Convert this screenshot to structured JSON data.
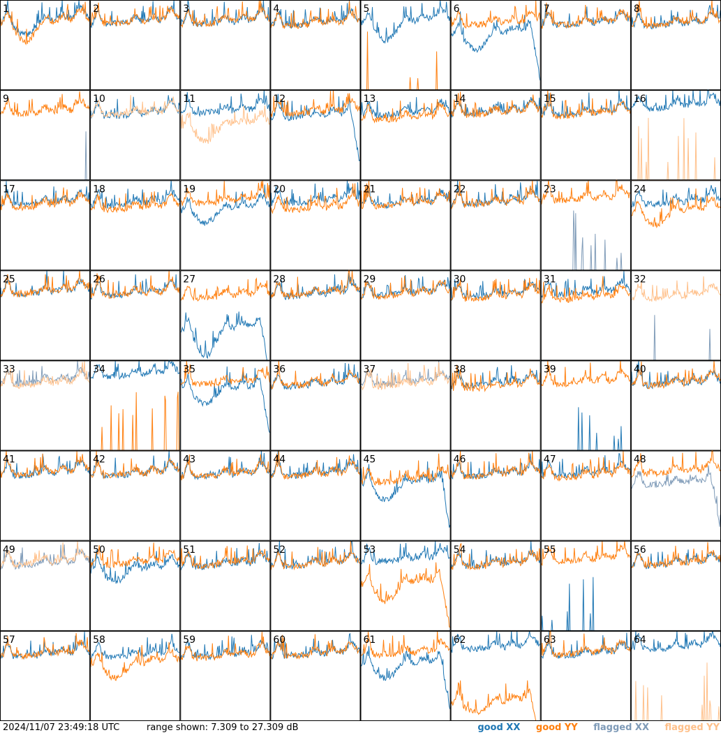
{
  "footer": {
    "timestamp": "2024/11/07 23:49:18 UTC",
    "range_text": "range shown: 7.309 to 27.309 dB"
  },
  "legend": [
    {
      "label": "good XX",
      "color": "#1f77b4"
    },
    {
      "label": "good YY",
      "color": "#ff7f0e"
    },
    {
      "label": "flagged XX",
      "color": "#7f9bb8"
    },
    {
      "label": "flagged YY",
      "color": "#ffc08a"
    }
  ],
  "chart_data": {
    "type": "line",
    "grid": {
      "rows": 8,
      "cols": 8
    },
    "title": "",
    "xlabel": "",
    "ylabel": "",
    "ylim": [
      7.309,
      27.309
    ],
    "y_unit": "dB",
    "series_types": [
      "good XX",
      "good YY",
      "flagged XX",
      "flagged YY"
    ],
    "colors": {
      "good_xx": "#1f77b4",
      "good_yy": "#ff7f0e",
      "flagged_xx": "#7f9bb8",
      "flagged_yy": "#ffc08a"
    },
    "panels": [
      {
        "id": "1",
        "xx": "good",
        "yy": "good",
        "xx_level": 22.3,
        "yy_level": 21.8,
        "xx_dip": 3.0,
        "yy_dip": 4.0
      },
      {
        "id": "2",
        "xx": "good",
        "yy": "good",
        "xx_level": 21.8,
        "yy_level": 21.8
      },
      {
        "id": "3",
        "xx": "good",
        "yy": "good",
        "xx_level": 21.8,
        "yy_level": 21.8
      },
      {
        "id": "4",
        "xx": "good",
        "yy": "good",
        "xx_level": 21.5,
        "yy_level": 21.3
      },
      {
        "id": "5",
        "xx": "good",
        "yy": "good",
        "xx_level": 22.0,
        "yy_level": 8.0,
        "xx_dip": 4.0,
        "yy_flat": true
      },
      {
        "id": "6",
        "xx": "good",
        "yy": "good",
        "xx_level": 19.5,
        "yy_level": 21.5,
        "xx_dip": 3.5,
        "xx_end_drop": true
      },
      {
        "id": "7",
        "xx": "good",
        "yy": "good",
        "xx_level": 21.5,
        "yy_level": 21.5
      },
      {
        "id": "8",
        "xx": "good",
        "yy": "good",
        "xx_level": 21.3,
        "yy_level": 21.5
      },
      {
        "id": "9",
        "xx": "flagged",
        "yy": "good",
        "xx_level": 8.0,
        "yy_level": 21.8,
        "xx_flat": true
      },
      {
        "id": "10",
        "xx": "good",
        "yy": "flagged",
        "xx_level": 21.3,
        "yy_level": 21.5
      },
      {
        "id": "11",
        "xx": "good",
        "yy": "flagged",
        "xx_level": 22.0,
        "yy_level": 19.0,
        "yy_dip": 3.5
      },
      {
        "id": "12",
        "xx": "good",
        "yy": "good",
        "xx_level": 21.0,
        "yy_level": 21.8,
        "xx_end_drop": true
      },
      {
        "id": "13",
        "xx": "good",
        "yy": "good",
        "xx_level": 21.5,
        "yy_level": 20.5
      },
      {
        "id": "14",
        "xx": "good",
        "yy": "good",
        "xx_level": 21.8,
        "yy_level": 21.5
      },
      {
        "id": "15",
        "xx": "good",
        "yy": "good",
        "xx_level": 21.5,
        "yy_level": 21.3
      },
      {
        "id": "16",
        "xx": "good",
        "yy": "flagged",
        "xx_level": 23.0,
        "yy_level": 8.0,
        "yy_flat": true
      },
      {
        "id": "17",
        "xx": "good",
        "yy": "good",
        "xx_level": 21.5,
        "yy_level": 21.0
      },
      {
        "id": "18",
        "xx": "good",
        "yy": "good",
        "xx_level": 21.5,
        "yy_level": 20.5
      },
      {
        "id": "19",
        "xx": "good",
        "yy": "good",
        "xx_level": 20.5,
        "yy_level": 22.0,
        "xx_dip": 3.0
      },
      {
        "id": "20",
        "xx": "good",
        "yy": "good",
        "xx_level": 22.0,
        "yy_level": 20.5
      },
      {
        "id": "21",
        "xx": "good",
        "yy": "good",
        "xx_level": 21.5,
        "yy_level": 21.3
      },
      {
        "id": "22",
        "xx": "good",
        "yy": "good",
        "xx_level": 21.8,
        "yy_level": 21.5
      },
      {
        "id": "23",
        "xx": "flagged",
        "yy": "good",
        "xx_level": 8.0,
        "yy_level": 22.5,
        "xx_flat": true
      },
      {
        "id": "24",
        "xx": "good",
        "yy": "good",
        "xx_level": 21.8,
        "yy_level": 20.0,
        "yy_dip": 3.0
      },
      {
        "id": "25",
        "xx": "good",
        "yy": "good",
        "xx_level": 21.8,
        "yy_level": 21.8
      },
      {
        "id": "26",
        "xx": "good",
        "yy": "good",
        "xx_level": 21.5,
        "yy_level": 21.5
      },
      {
        "id": "27",
        "xx": "good",
        "yy": "good",
        "xx_level": 14.0,
        "yy_level": 21.0,
        "xx_dip": 6.0,
        "xx_end_drop": true
      },
      {
        "id": "28",
        "xx": "good",
        "yy": "good",
        "xx_level": 21.3,
        "yy_level": 21.5
      },
      {
        "id": "29",
        "xx": "good",
        "yy": "good",
        "xx_level": 21.5,
        "yy_level": 21.3
      },
      {
        "id": "30",
        "xx": "good",
        "yy": "good",
        "xx_level": 21.3,
        "yy_level": 20.8
      },
      {
        "id": "31",
        "xx": "good",
        "yy": "good",
        "xx_level": 21.8,
        "yy_level": 20.5
      },
      {
        "id": "32",
        "xx": "flagged",
        "yy": "flagged",
        "xx_level": 8.0,
        "yy_level": 20.8,
        "xx_flat": true
      },
      {
        "id": "33",
        "xx": "flagged",
        "yy": "flagged",
        "xx_level": 22.0,
        "yy_level": 21.5
      },
      {
        "id": "34",
        "xx": "good",
        "yy": "good",
        "xx_level": 23.5,
        "yy_level": 8.0,
        "yy_flat": true
      },
      {
        "id": "35",
        "xx": "good",
        "yy": "good",
        "xx_level": 20.5,
        "yy_level": 21.8,
        "xx_dip": 3.0,
        "xx_end_drop": true
      },
      {
        "id": "36",
        "xx": "good",
        "yy": "good",
        "xx_level": 21.3,
        "yy_level": 21.5
      },
      {
        "id": "37",
        "xx": "flagged",
        "yy": "flagged",
        "xx_level": 21.8,
        "yy_level": 21.3
      },
      {
        "id": "38",
        "xx": "good",
        "yy": "good",
        "xx_level": 21.5,
        "yy_level": 20.8
      },
      {
        "id": "39",
        "xx": "good",
        "yy": "good",
        "xx_level": 8.0,
        "yy_level": 21.8,
        "xx_flat": true
      },
      {
        "id": "40",
        "xx": "good",
        "yy": "good",
        "xx_level": 21.5,
        "yy_level": 21.5
      },
      {
        "id": "41",
        "xx": "good",
        "yy": "good",
        "xx_level": 21.5,
        "yy_level": 21.8
      },
      {
        "id": "42",
        "xx": "good",
        "yy": "good",
        "xx_level": 21.5,
        "yy_level": 21.5
      },
      {
        "id": "43",
        "xx": "good",
        "yy": "good",
        "xx_level": 21.3,
        "yy_level": 21.3
      },
      {
        "id": "44",
        "xx": "good",
        "yy": "good",
        "xx_level": 21.5,
        "yy_level": 21.3
      },
      {
        "id": "45",
        "xx": "good",
        "yy": "good",
        "xx_level": 19.5,
        "yy_level": 20.0,
        "xx_dip": 3.5,
        "xx_end_drop": true
      },
      {
        "id": "46",
        "xx": "good",
        "yy": "good",
        "xx_level": 21.3,
        "yy_level": 21.3
      },
      {
        "id": "47",
        "xx": "good",
        "yy": "good",
        "xx_level": 21.5,
        "yy_level": 21.0
      },
      {
        "id": "48",
        "xx": "flagged",
        "yy": "good",
        "xx_level": 19.5,
        "yy_level": 22.0,
        "xx_end_drop": true
      },
      {
        "id": "49",
        "xx": "flagged",
        "yy": "flagged",
        "xx_level": 21.5,
        "yy_level": 21.8
      },
      {
        "id": "50",
        "xx": "good",
        "yy": "good",
        "xx_level": 20.5,
        "yy_level": 21.8,
        "xx_dip": 2.5
      },
      {
        "id": "51",
        "xx": "good",
        "yy": "good",
        "xx_level": 21.3,
        "yy_level": 21.5
      },
      {
        "id": "52",
        "xx": "good",
        "yy": "good",
        "xx_level": 21.5,
        "yy_level": 21.3
      },
      {
        "id": "53",
        "xx": "good",
        "yy": "good",
        "xx_level": 22.5,
        "yy_level": 17.5,
        "yy_dip": 4.0,
        "yy_end_drop": true
      },
      {
        "id": "54",
        "xx": "good",
        "yy": "good",
        "xx_level": 21.5,
        "yy_level": 21.3
      },
      {
        "id": "55",
        "xx": "good",
        "yy": "good",
        "xx_level": 8.0,
        "yy_level": 22.5,
        "xx_flat": true
      },
      {
        "id": "56",
        "xx": "good",
        "yy": "good",
        "xx_level": 21.5,
        "yy_level": 21.5
      },
      {
        "id": "57",
        "xx": "good",
        "yy": "good",
        "xx_level": 21.3,
        "yy_level": 21.5
      },
      {
        "id": "58",
        "xx": "good",
        "yy": "good",
        "xx_level": 21.3,
        "yy_level": 19.5,
        "yy_dip": 3.0
      },
      {
        "id": "59",
        "xx": "good",
        "yy": "good",
        "xx_level": 21.3,
        "yy_level": 21.0
      },
      {
        "id": "60",
        "xx": "good",
        "yy": "good",
        "xx_level": 21.5,
        "yy_level": 21.5
      },
      {
        "id": "61",
        "xx": "good",
        "yy": "good",
        "xx_level": 19.5,
        "yy_level": 21.8,
        "xx_dip": 3.0,
        "xx_end_drop": true
      },
      {
        "id": "62",
        "xx": "good",
        "yy": "good",
        "xx_level": 23.0,
        "yy_level": 11.0,
        "yy_dip": 2.0,
        "yy_end_drop": true
      },
      {
        "id": "63",
        "xx": "good",
        "yy": "good",
        "xx_level": 21.5,
        "yy_level": 21.8
      },
      {
        "id": "64",
        "xx": "good",
        "yy": "flagged",
        "xx_level": 23.0,
        "yy_level": 8.0,
        "yy_flat": true
      }
    ]
  }
}
